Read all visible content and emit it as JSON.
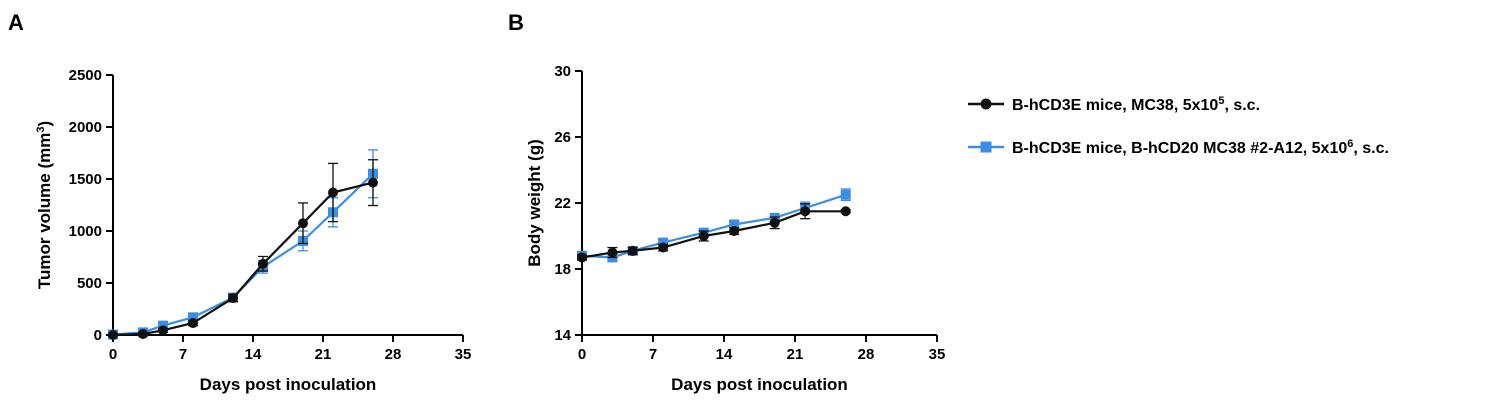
{
  "colors": {
    "series1": "#111111",
    "series2": "#3a8ee6"
  },
  "legend": [
    {
      "marker": "circle",
      "color": "#111111",
      "base": "B-hCD3E mice, MC38, 5x10",
      "sup": "5",
      "tail": ", s.c."
    },
    {
      "marker": "square",
      "color": "#3a8ee6",
      "base": "B-hCD3E mice, B-hCD20 MC38 #2-A12, 5x10",
      "sup": "6",
      "tail": ", s.c."
    }
  ],
  "chart_data": [
    {
      "panel_label": "A",
      "type": "line",
      "xlabel": "Days post inoculation",
      "ylabel_base": "Tumor volume (mm",
      "ylabel_sup": "3",
      "ylabel_tail": ")",
      "xlim": [
        0,
        35
      ],
      "ylim": [
        0,
        2500
      ],
      "xticks": [
        "0",
        "7",
        "14",
        "21",
        "28",
        "35"
      ],
      "yticks": [
        "0",
        "500",
        "1000",
        "1500",
        "2000",
        "2500"
      ],
      "series": [
        {
          "marker": "circle",
          "color": "#111111",
          "x": [
            0,
            3,
            5,
            8,
            12,
            15,
            19,
            22,
            26
          ],
          "y": [
            0,
            10,
            45,
            115,
            355,
            685,
            1075,
            1370,
            1465
          ],
          "err": [
            5,
            8,
            15,
            25,
            35,
            70,
            195,
            280,
            220
          ]
        },
        {
          "marker": "square",
          "color": "#3a8ee6",
          "x": [
            0,
            3,
            5,
            8,
            12,
            15,
            19,
            22,
            26
          ],
          "y": [
            5,
            25,
            90,
            170,
            360,
            655,
            905,
            1180,
            1550
          ],
          "err": [
            5,
            10,
            20,
            25,
            30,
            60,
            95,
            140,
            230
          ]
        }
      ]
    },
    {
      "panel_label": "B",
      "type": "line",
      "xlabel": "Days post inoculation",
      "ylabel": "Body weight (g)",
      "xlim": [
        0,
        35
      ],
      "ylim": [
        14,
        30
      ],
      "xticks": [
        "0",
        "7",
        "14",
        "21",
        "28",
        "35"
      ],
      "yticks": [
        "14",
        "18",
        "22",
        "26",
        "30"
      ],
      "series": [
        {
          "marker": "circle",
          "color": "#111111",
          "x": [
            0,
            3,
            5,
            8,
            12,
            15,
            19,
            22,
            26
          ],
          "y": [
            18.7,
            19.0,
            19.1,
            19.3,
            20.0,
            20.3,
            20.8,
            21.5,
            21.5
          ],
          "err": [
            0.15,
            0.3,
            0.2,
            0.2,
            0.3,
            0.2,
            0.35,
            0.45,
            0.1
          ]
        },
        {
          "marker": "square",
          "color": "#3a8ee6",
          "x": [
            0,
            3,
            5,
            8,
            12,
            15,
            19,
            22,
            26
          ],
          "y": [
            18.8,
            18.7,
            19.1,
            19.6,
            20.2,
            20.7,
            21.1,
            21.7,
            22.5
          ],
          "err": [
            0.15,
            0.2,
            0.2,
            0.2,
            0.25,
            0.2,
            0.2,
            0.35,
            0.35
          ]
        }
      ]
    }
  ]
}
